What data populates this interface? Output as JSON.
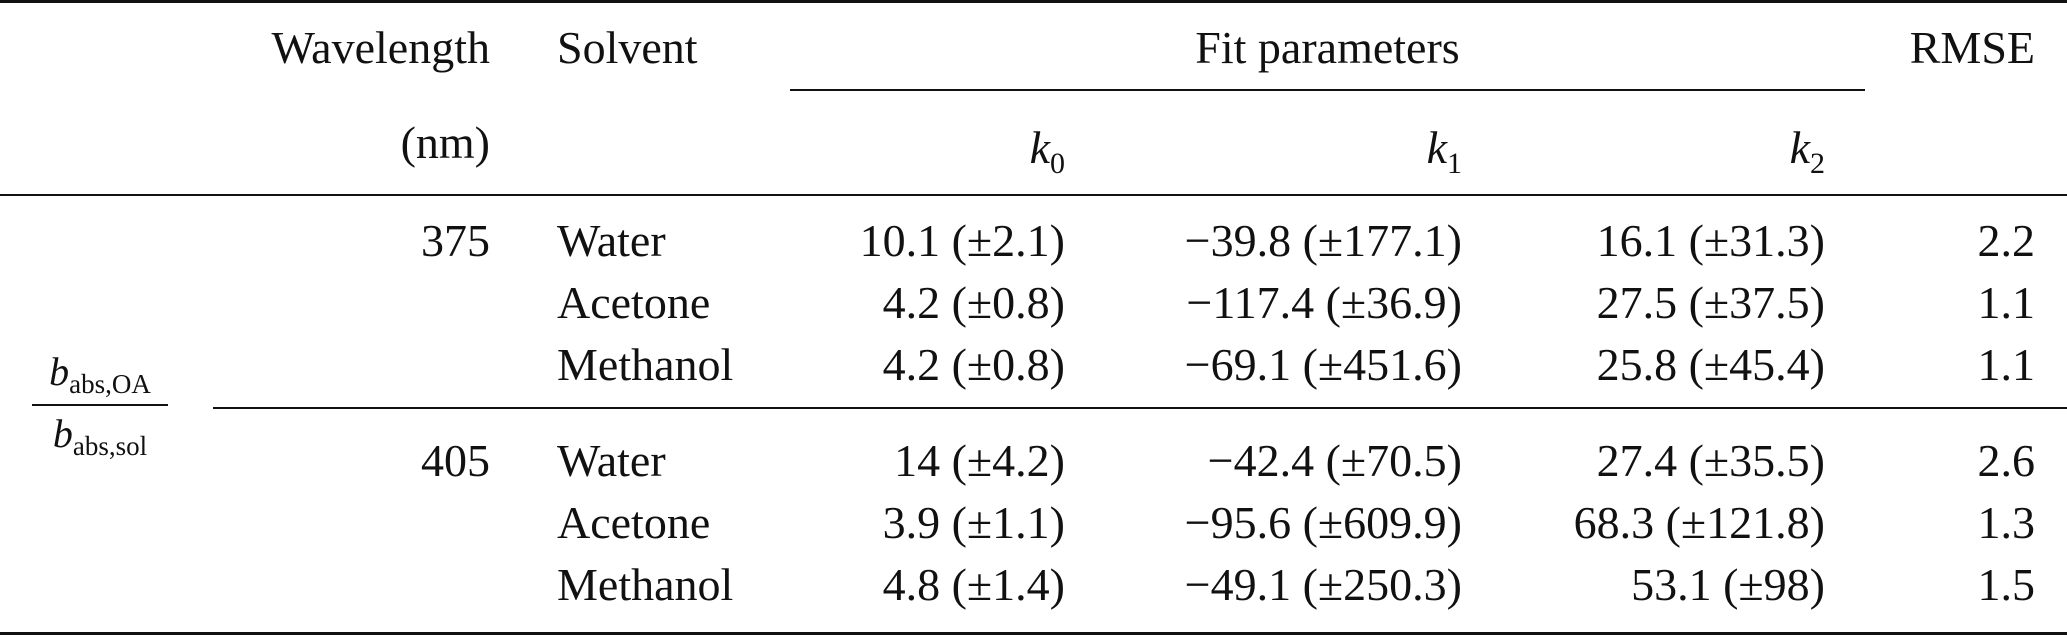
{
  "header": {
    "wavelength": "Wavelength",
    "wavelength_unit": "(nm)",
    "solvent": "Solvent",
    "fit_parameters": "Fit parameters",
    "rmse": "RMSE",
    "k0_base": "k",
    "k0_sub": "0",
    "k1_base": "k",
    "k1_sub": "1",
    "k2_base": "k",
    "k2_sub": "2"
  },
  "row_label": {
    "num_base": "b",
    "num_sub": "abs,OA",
    "den_base": "b",
    "den_sub": "abs,sol"
  },
  "groups": [
    {
      "wavelength": "375",
      "rows": [
        {
          "solvent": "Water",
          "k0": "10.1 (±2.1)",
          "k1": "−39.8 (±177.1)",
          "k2": "16.1 (±31.3)",
          "rmse": "2.2"
        },
        {
          "solvent": "Acetone",
          "k0": "4.2 (±0.8)",
          "k1": "−117.4 (±36.9)",
          "k2": "27.5 (±37.5)",
          "rmse": "1.1"
        },
        {
          "solvent": "Methanol",
          "k0": "4.2 (±0.8)",
          "k1": "−69.1 (±451.6)",
          "k2": "25.8 (±45.4)",
          "rmse": "1.1"
        }
      ]
    },
    {
      "wavelength": "405",
      "rows": [
        {
          "solvent": "Water",
          "k0": "14 (±4.2)",
          "k1": "−42.4 (±70.5)",
          "k2": "27.4 (±35.5)",
          "rmse": "2.6"
        },
        {
          "solvent": "Acetone",
          "k0": "3.9 (±1.1)",
          "k1": "−95.6 (±609.9)",
          "k2": "68.3 (±121.8)",
          "rmse": "1.3"
        },
        {
          "solvent": "Methanol",
          "k0": "4.8 (±1.4)",
          "k1": "−49.1 (±250.3)",
          "k2": "53.1 (±98)",
          "rmse": "1.5"
        }
      ]
    }
  ]
}
